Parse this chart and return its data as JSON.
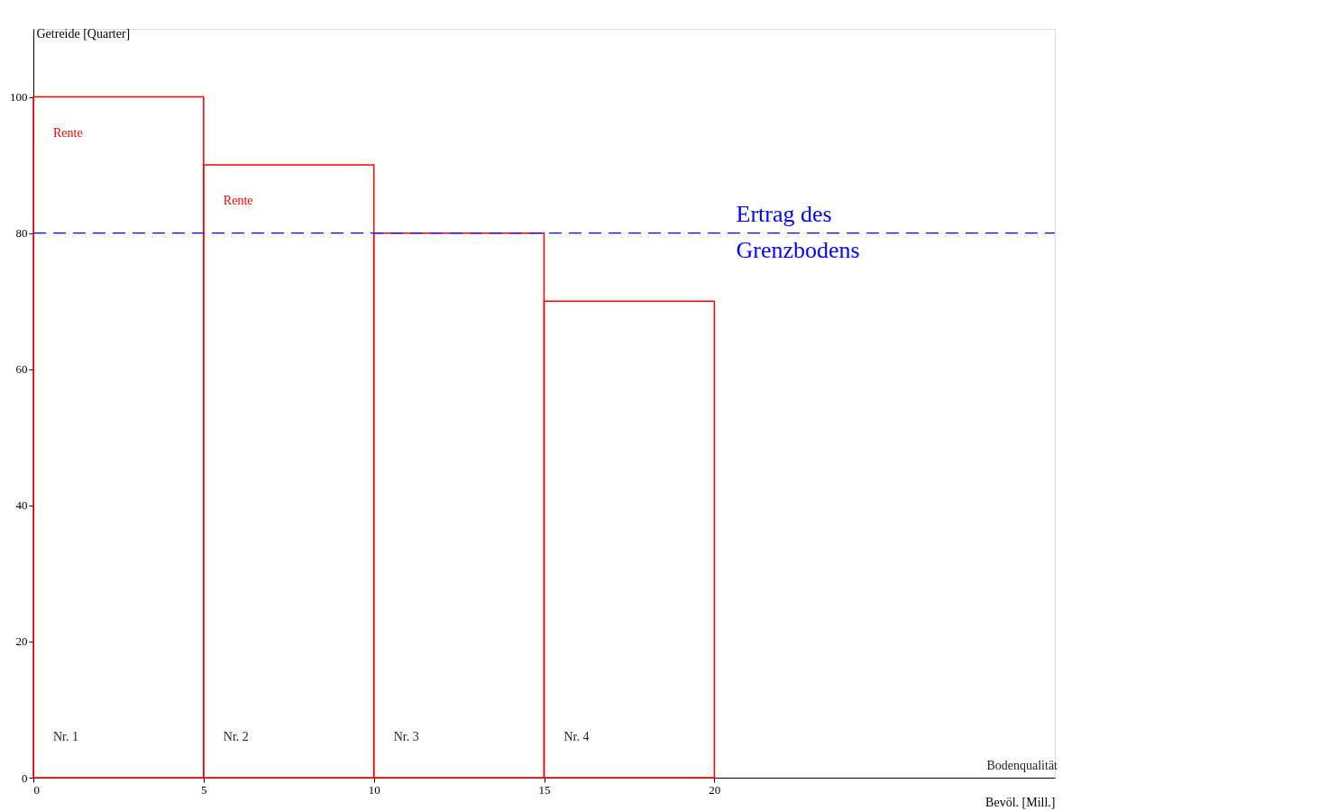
{
  "chart_data": {
    "type": "histogram",
    "bins": [
      0,
      5,
      10,
      15,
      20
    ],
    "values": [
      100,
      90,
      80,
      70
    ],
    "color": "#ff0000",
    "xlabel": "Bevöl. [Mill.]",
    "ylabel": "Getreide [Quarter]",
    "xlim": [
      0,
      30
    ],
    "xticks": [
      0,
      5,
      10,
      15,
      20
    ],
    "ylim": [
      0,
      110
    ],
    "yticks": [
      0,
      20,
      40,
      60,
      80,
      100
    ],
    "grid": false,
    "ref_lines": [
      {
        "axis": "y",
        "value": 80,
        "label": "Ertrag des\nGrenzbodens",
        "color": "#0000ff",
        "line_style": "dashed"
      }
    ],
    "annotations": [
      "Rente",
      "Rente",
      "Nr. 1",
      "Nr. 2",
      "Nr. 3",
      "Nr. 4",
      "Bodenqualität"
    ]
  }
}
